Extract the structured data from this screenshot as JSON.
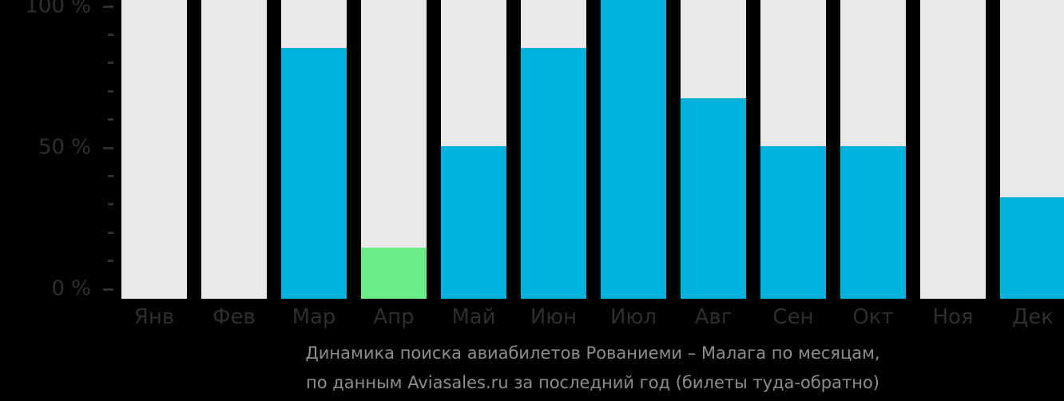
{
  "chart_data": {
    "type": "bar",
    "categories": [
      "Янв",
      "Фев",
      "Мар",
      "Апр",
      "Май",
      "Июн",
      "Июл",
      "Авг",
      "Сен",
      "Окт",
      "Ноя",
      "Дек"
    ],
    "values": [
      0,
      0,
      84,
      17,
      51,
      84,
      100,
      67,
      51,
      51,
      0,
      34
    ],
    "highlight_index": 3,
    "highlight_month": "Апр",
    "title_lines": [
      "Динамика поиска авиабилетов Рованиеми – Малага по месяцам,",
      "по данным Aviasales.ru за последний год (билеты туда-обратно)"
    ],
    "title": "Динамика поиска авиабилетов Рованиеми – Малага по месяцам, по данным Aviasales.ru за последний год (билеты туда-обратно)",
    "y_tick_labels": [
      "100 %",
      "50 %",
      "0 %"
    ],
    "ylim": [
      0,
      100
    ],
    "y_major_step": 50,
    "y_minor_step": 10,
    "grid": false,
    "legend": "none",
    "xlabel": "",
    "ylabel": ""
  },
  "colors": {
    "background": "#000000",
    "bar_fill": "#00b2dc",
    "bar_highlight": "#69ee87",
    "bar_track": "#e9e9e9",
    "axis_text": "#2e2e2e",
    "title_text": "#8e8e8e"
  }
}
